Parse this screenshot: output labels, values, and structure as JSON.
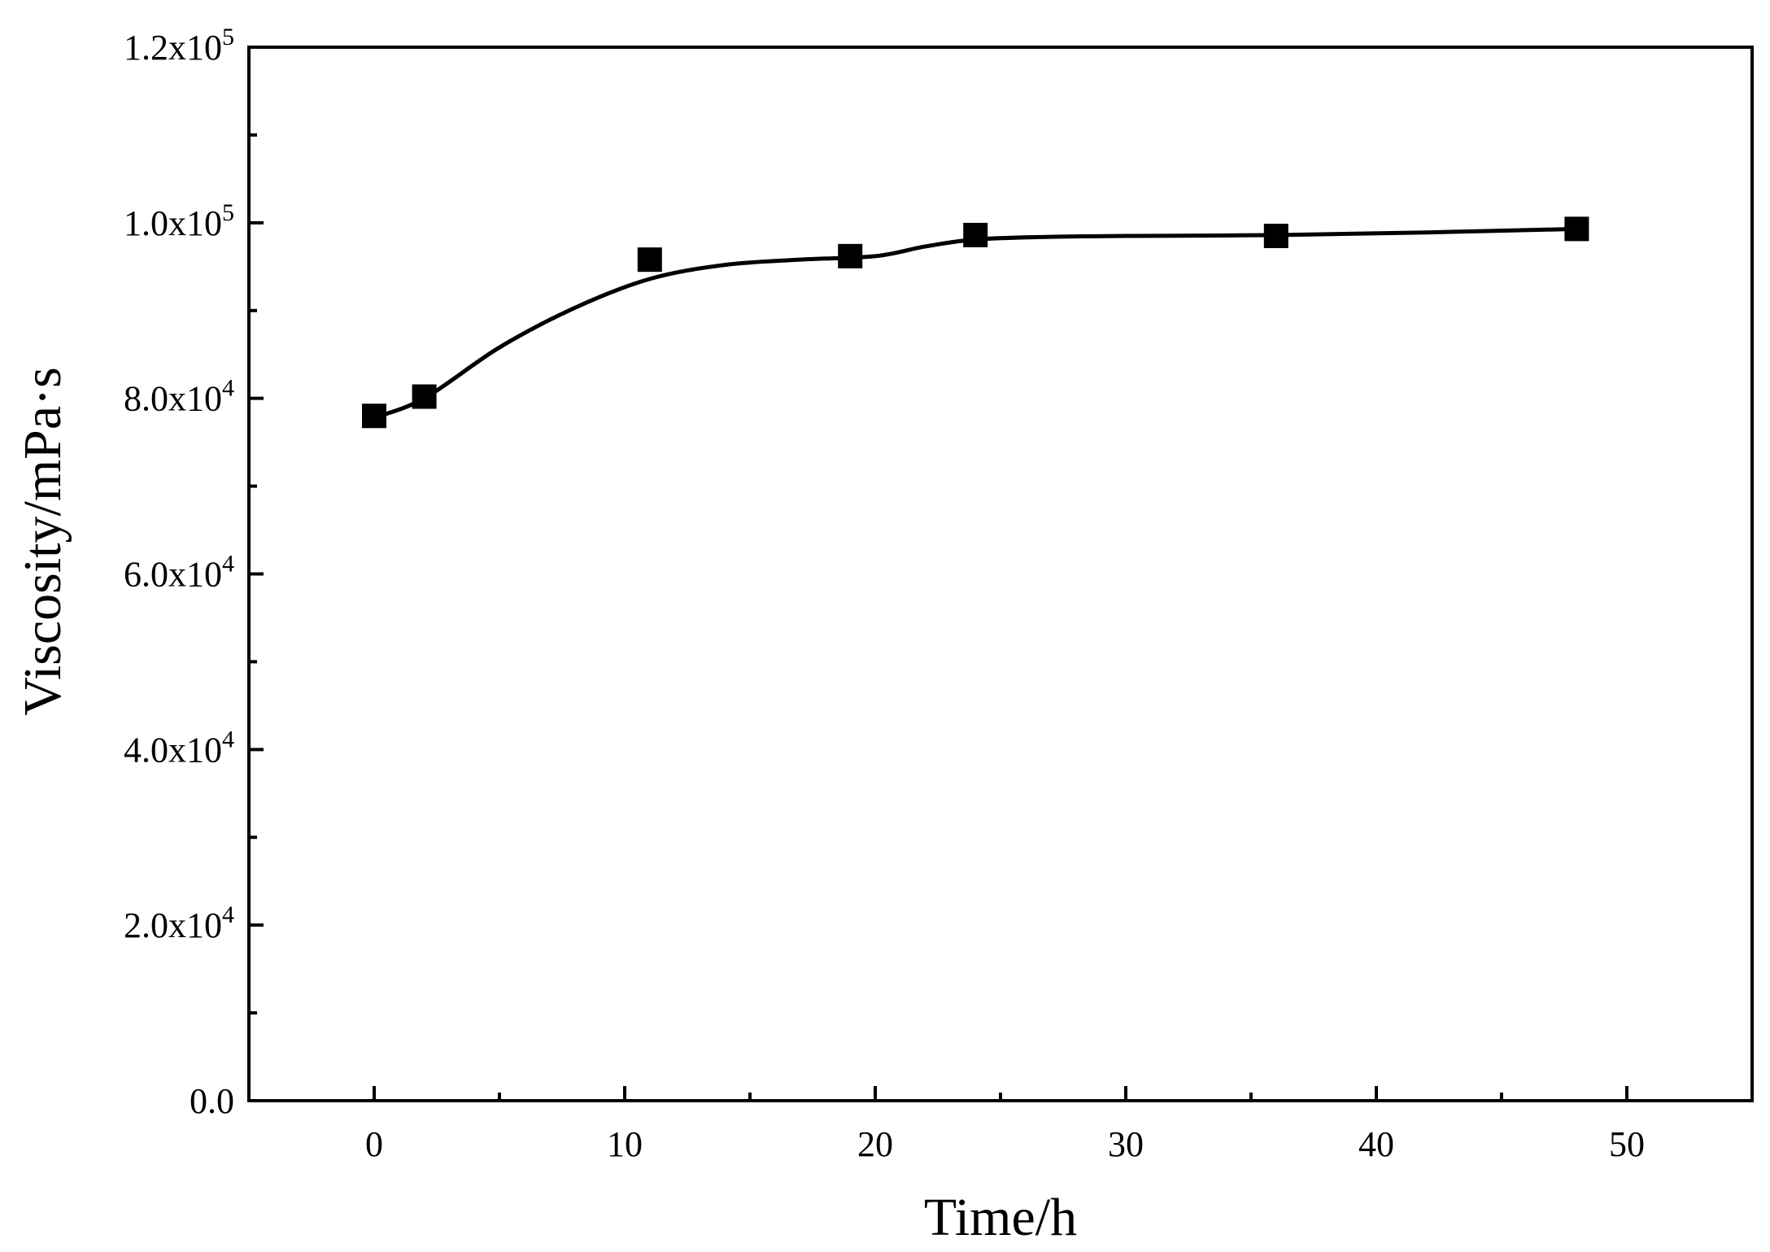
{
  "chart_data": {
    "type": "line",
    "xlabel": "Time/h",
    "ylabel": "Viscosity/mPa·s",
    "xlim": [
      -5,
      55
    ],
    "ylim": [
      0,
      120000
    ],
    "x_major_ticks": [
      0,
      10,
      20,
      30,
      40,
      50
    ],
    "x_minor_ticks": [
      5,
      15,
      25,
      35,
      45
    ],
    "y_major_ticks": [
      0,
      20000,
      40000,
      60000,
      80000,
      100000,
      120000
    ],
    "y_minor_ticks": [
      10000,
      30000,
      50000,
      70000,
      90000,
      110000
    ],
    "x_tick_labels": [
      "0",
      "10",
      "20",
      "30",
      "40",
      "50"
    ],
    "y_tick_labels": [
      {
        "mantissa": "0.0",
        "base": "",
        "exp": ""
      },
      {
        "mantissa": "2.0",
        "base": "x10",
        "exp": "4"
      },
      {
        "mantissa": "4.0",
        "base": "x10",
        "exp": "4"
      },
      {
        "mantissa": "6.0",
        "base": "x10",
        "exp": "4"
      },
      {
        "mantissa": "8.0",
        "base": "x10",
        "exp": "4"
      },
      {
        "mantissa": "1.0",
        "base": "x10",
        "exp": "5"
      },
      {
        "mantissa": "1.2",
        "base": "x10",
        "exp": "5"
      }
    ],
    "grid": false,
    "marker": "square",
    "color": "#000000",
    "series": [
      {
        "x": [
          0,
          2,
          11,
          19,
          24,
          36,
          48
        ],
        "y": [
          78000,
          80200,
          95800,
          96200,
          98600,
          98500,
          99300
        ]
      }
    ],
    "fit_curve": {
      "x": [
        0,
        2,
        5,
        8,
        11,
        14,
        17,
        20,
        22,
        24,
        27,
        30,
        36,
        42,
        48
      ],
      "y": [
        77800,
        80000,
        85800,
        90300,
        93600,
        95200,
        95800,
        96200,
        97300,
        98100,
        98400,
        98500,
        98600,
        98900,
        99300
      ]
    }
  }
}
